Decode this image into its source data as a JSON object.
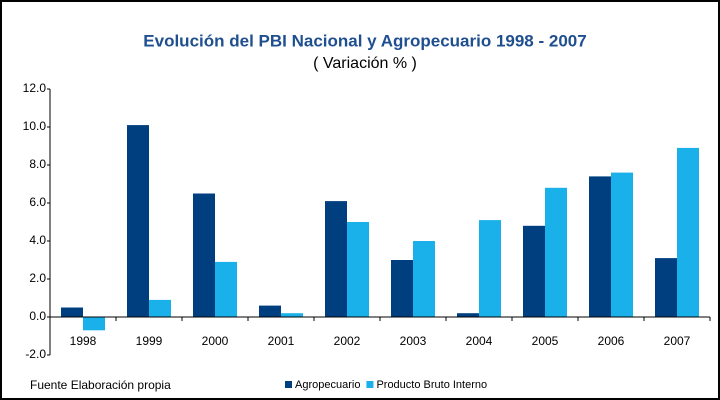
{
  "chart_data": {
    "type": "bar",
    "title": "Evolución del PBI Nacional y Agropecuario 1998 - 2007",
    "subtitle": "( Variación % )",
    "source": "Fuente Elaboración propia",
    "categories": [
      "1998",
      "1999",
      "2000",
      "2001",
      "2002",
      "2003",
      "2004",
      "2005",
      "2006",
      "2007"
    ],
    "series": [
      {
        "name": "Agropecuario",
        "color": "#003f7f",
        "values": [
          0.5,
          10.1,
          6.5,
          0.6,
          6.1,
          3.0,
          0.2,
          4.8,
          7.4,
          3.1
        ]
      },
      {
        "name": "Producto Bruto Interno",
        "color": "#1ab0ea",
        "values": [
          -0.7,
          0.9,
          2.9,
          0.2,
          5.0,
          4.0,
          5.1,
          6.8,
          7.6,
          8.9
        ]
      }
    ],
    "ylim": [
      -2,
      12
    ],
    "yticks": [
      {
        "value": -2,
        "label": "-2.0"
      },
      {
        "value": 0,
        "label": "0.0"
      },
      {
        "value": 2,
        "label": "2.0"
      },
      {
        "value": 4,
        "label": "4.0"
      },
      {
        "value": 6,
        "label": "6.0"
      },
      {
        "value": 8,
        "label": "8.0"
      },
      {
        "value": 10,
        "label": "10.0"
      },
      {
        "value": 12,
        "label": "12.0"
      }
    ],
    "grid": false,
    "legend": "bottom"
  }
}
